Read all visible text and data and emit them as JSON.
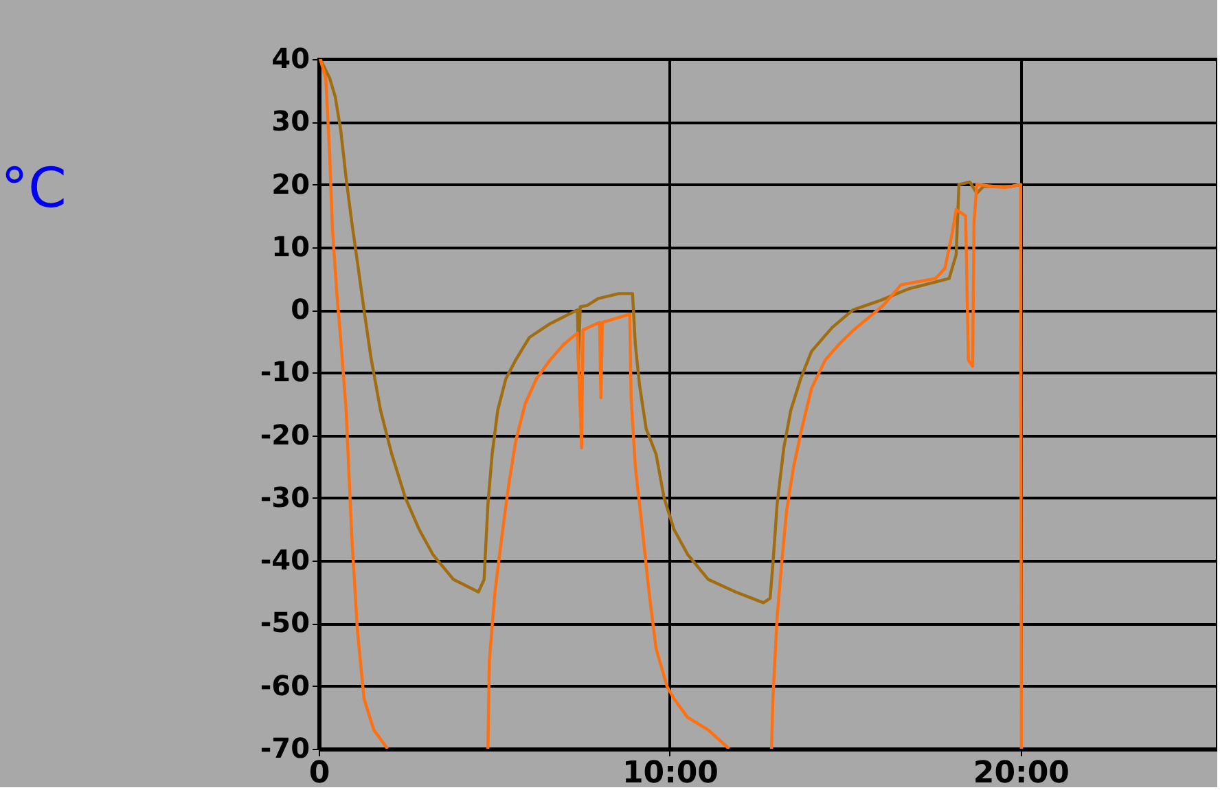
{
  "chart_data": {
    "type": "line",
    "ylabel": "°C",
    "xlim": [
      0,
      25.6
    ],
    "xticks": [
      0,
      {
        "value": 10,
        "label": "10:00"
      },
      {
        "value": 20,
        "label": "20:00"
      }
    ],
    "ylim": [
      -70,
      40
    ],
    "yticks": [
      -70,
      -60,
      -50,
      -40,
      -30,
      -20,
      -10,
      0,
      10,
      20,
      30,
      40
    ],
    "grid": true,
    "legend": false,
    "marker": "none",
    "line_style": "solid",
    "series": [
      {
        "color": "#a06e10",
        "x": [
          0.04,
          0.31,
          0.47,
          0.63,
          0.78,
          0.94,
          1.1,
          1.29,
          1.49,
          1.76,
          2.08,
          2.47,
          2.86,
          3.25,
          3.84,
          4.55,
          4.71,
          4.82,
          4.94,
          5.1,
          5.33,
          5.61,
          6.0,
          6.59,
          7.37,
          7.4,
          7.45,
          7.65,
          7.96,
          8.55,
          8.94,
          9.02,
          9.14,
          9.33,
          9.61,
          9.84,
          10.12,
          10.51,
          11.1,
          11.88,
          12.67,
          12.86,
          12.94,
          13.06,
          13.25,
          13.45,
          13.73,
          14.04,
          14.63,
          15.22,
          16.0,
          16.78,
          17.96,
          18.16,
          18.24,
          18.55,
          18.75,
          18.94,
          19.73,
          20.0
        ],
        "values": [
          40,
          37,
          34,
          28.5,
          21,
          14,
          7.7,
          0,
          -7.7,
          -16,
          -23,
          -30,
          -35,
          -39,
          -43,
          -45,
          -43,
          -31,
          -23,
          -16,
          -11,
          -8,
          -4.4,
          -2.2,
          0,
          -8,
          0.5,
          0.7,
          1.8,
          2.6,
          2.6,
          -5.5,
          -12,
          -19,
          -23,
          -30,
          -35,
          -39,
          -43,
          -45,
          -46.7,
          -46,
          -40.5,
          -31,
          -22,
          -16,
          -11,
          -6.6,
          -2.8,
          0,
          1.5,
          3.3,
          5,
          8.8,
          20,
          20.4,
          18.6,
          19.7,
          19.7,
          20
        ]
      },
      {
        "color": "#ff7010",
        "x": [
          0.04,
          0.2,
          0.31,
          0.39,
          0.51,
          0.63,
          0.78,
          0.94,
          1.1,
          1.29,
          1.57,
          1.96,
          3.0,
          4.82,
          4.86,
          5.02,
          5.22,
          5.41,
          5.61,
          5.88,
          6.2,
          6.59,
          6.98,
          7.37,
          7.49,
          7.53,
          8.0,
          8.04,
          8.08,
          8.86,
          8.9,
          9.02,
          9.22,
          9.41,
          9.61,
          9.92,
          10.12,
          10.51,
          11.1,
          11.69,
          12.0,
          12.9,
          12.94,
          13.06,
          13.18,
          13.33,
          13.53,
          13.76,
          14.04,
          14.43,
          14.82,
          15.22,
          16.08,
          16.59,
          17.57,
          17.84,
          18.04,
          18.16,
          18.43,
          18.51,
          18.63,
          18.67,
          18.75,
          19.53,
          20.0,
          20.02
        ],
        "values": [
          40,
          37,
          25,
          13,
          3,
          -5,
          -16,
          -36,
          -51,
          -62,
          -67,
          -70,
          null,
          -70,
          -56,
          -45,
          -36,
          -28,
          -21,
          -15,
          -11,
          -8,
          -5.5,
          -3.7,
          -22,
          -3.2,
          -2,
          -14,
          -2,
          -0.7,
          -14,
          -25,
          -35,
          -45,
          -54,
          -60,
          -62,
          -65,
          -67,
          -70,
          null,
          -70,
          -62,
          -49,
          -41,
          -32,
          -25,
          -19,
          -12.5,
          -8,
          -5.5,
          -3.3,
          0.7,
          4,
          5,
          6.6,
          12,
          16,
          15,
          -8,
          -9,
          14,
          20,
          19.5,
          20,
          -70
        ]
      }
    ]
  }
}
